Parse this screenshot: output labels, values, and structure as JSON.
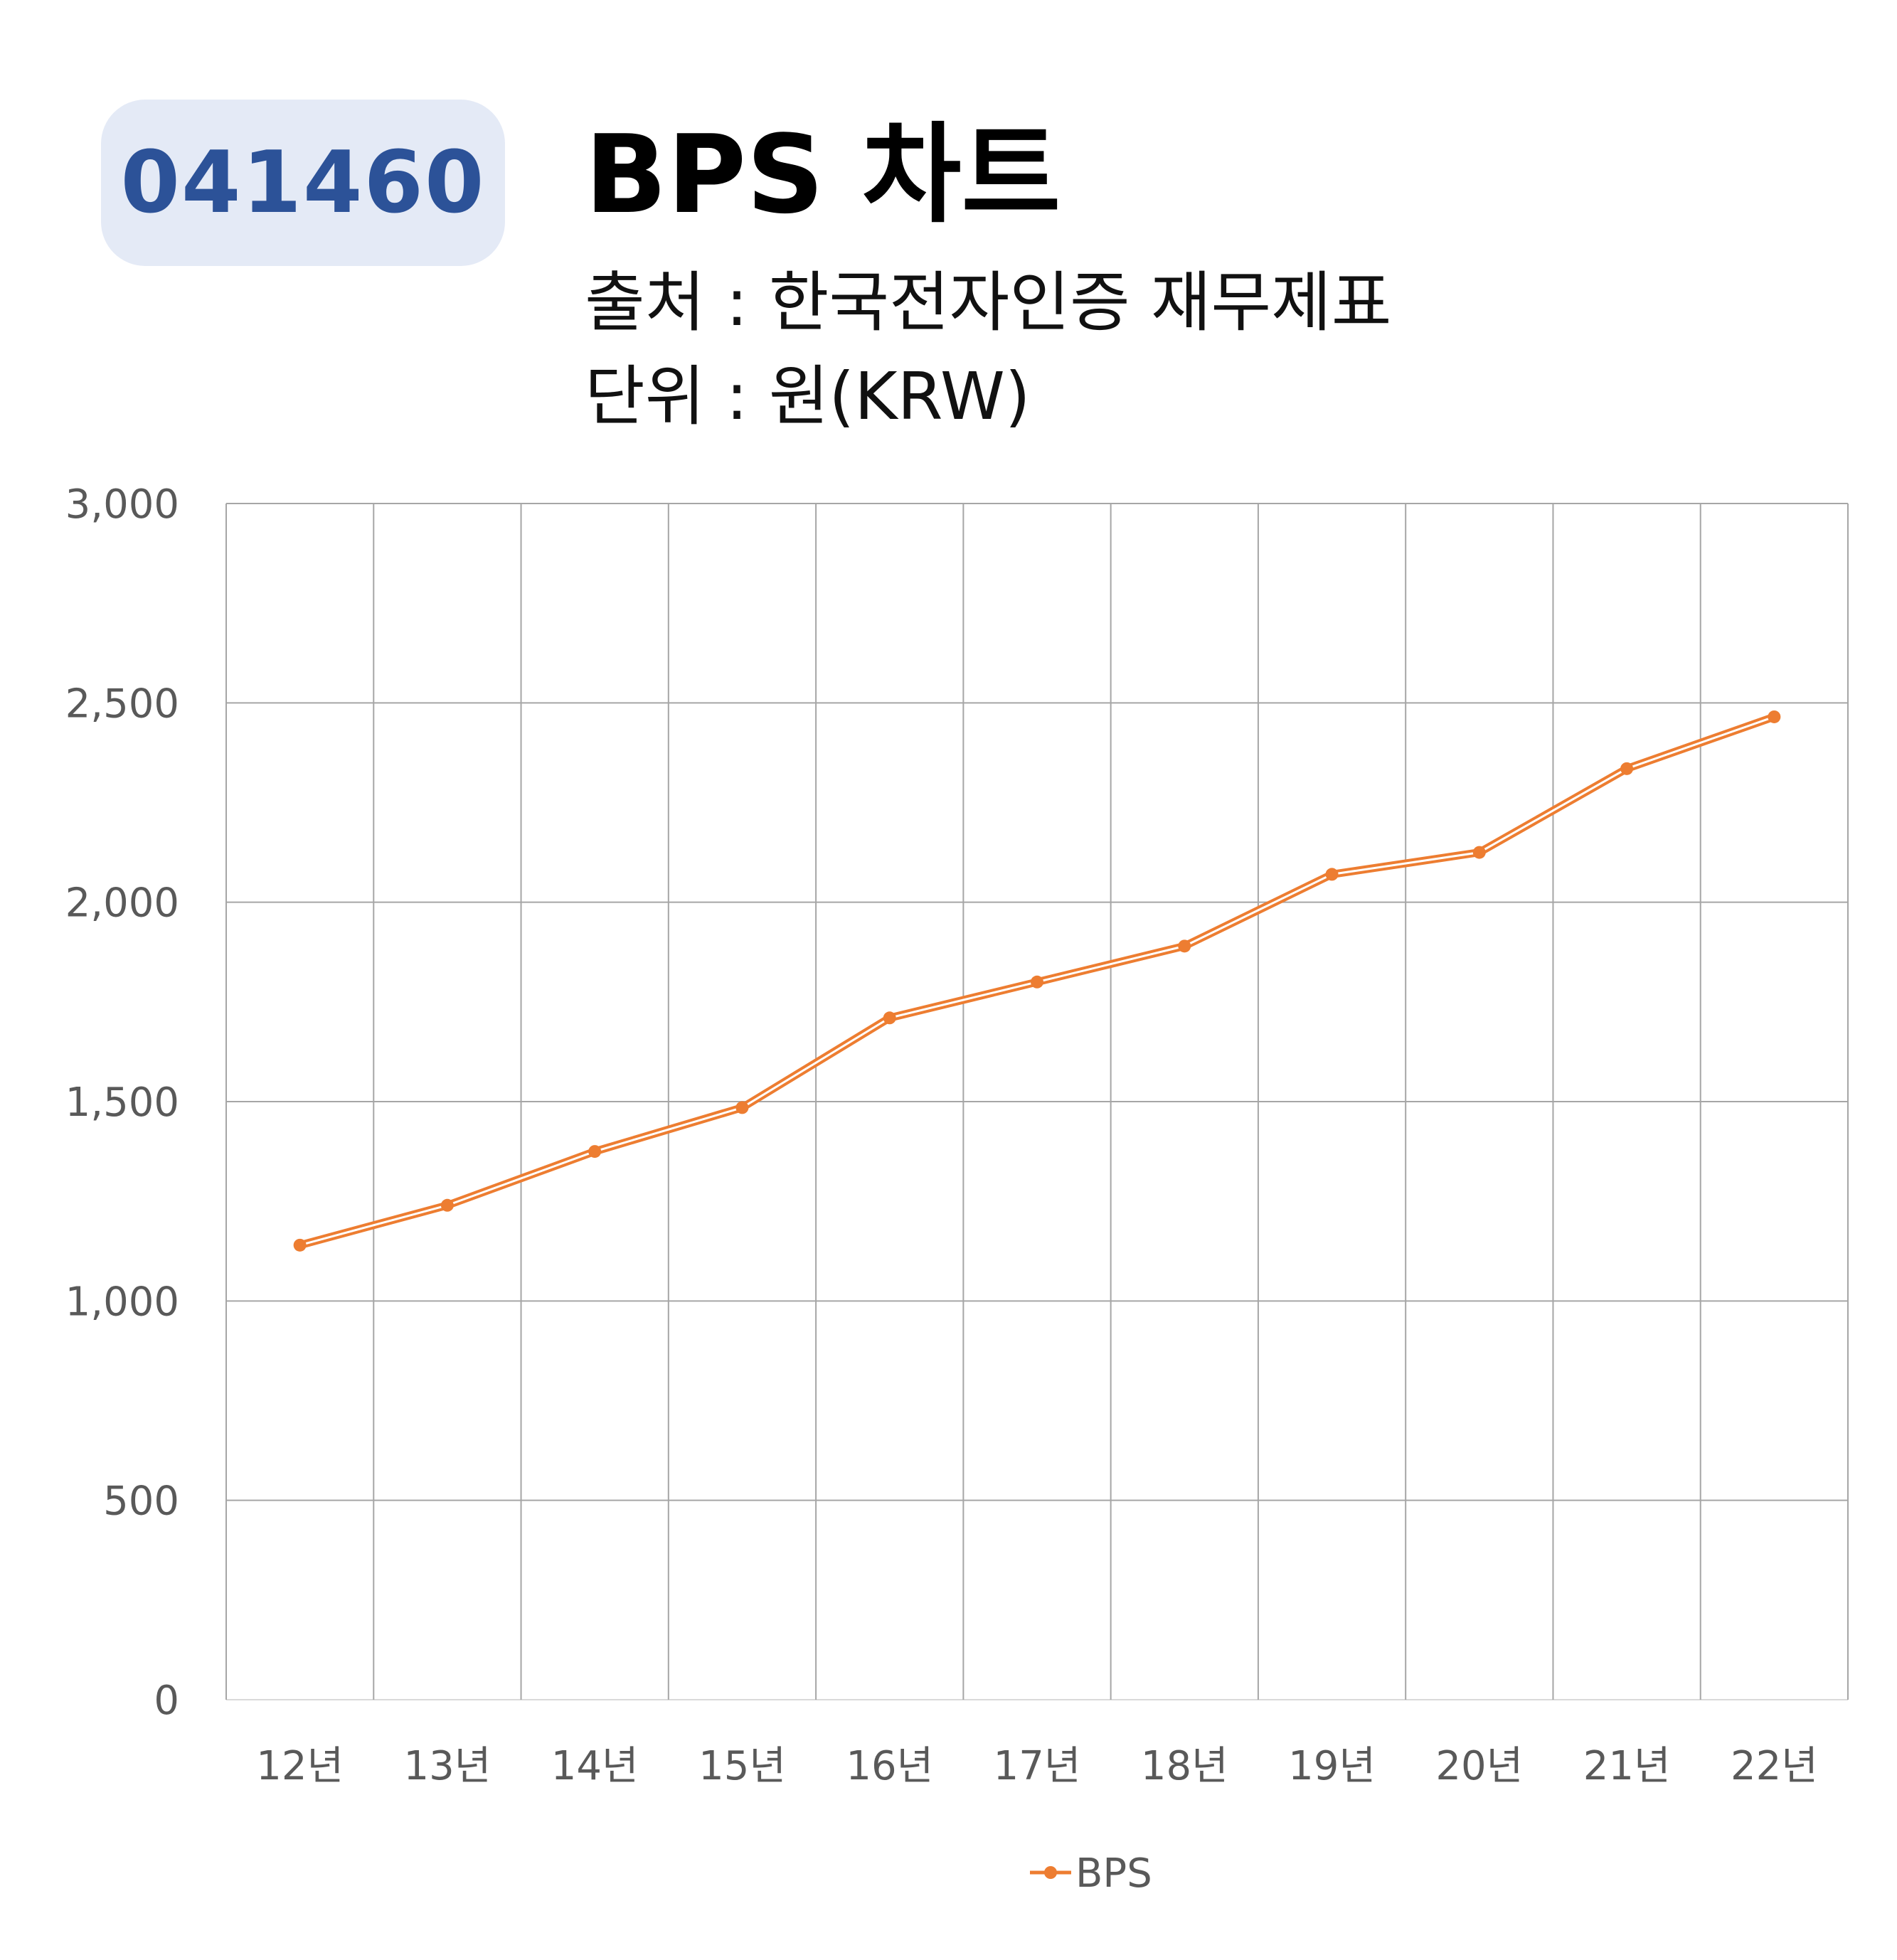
{
  "badge": {
    "ticker": "041460"
  },
  "header": {
    "title": "BPS 차트",
    "source": "출처 : 한국전자인증 재무제표",
    "unit": "단위 : 원(KRW)"
  },
  "colors": {
    "series": "#ed7d31",
    "badge_bg": "#e4eaf6",
    "badge_text": "#2c5298",
    "grid": "#a6a6a6"
  },
  "chart_data": {
    "type": "line",
    "categories": [
      "12년",
      "13년",
      "14년",
      "15년",
      "16년",
      "17년",
      "18년",
      "19년",
      "20년",
      "21년",
      "22년"
    ],
    "series": [
      {
        "name": "BPS",
        "values": [
          1140,
          1240,
          1375,
          1485,
          1710,
          1800,
          1890,
          2070,
          2125,
          2335,
          2465
        ]
      }
    ],
    "ylim": [
      0,
      3000
    ],
    "yticks": [
      0,
      500,
      1000,
      1500,
      2000,
      2500,
      3000
    ],
    "ytick_labels": [
      "0",
      "500",
      "1,000",
      "1,500",
      "2,000",
      "2,500",
      "3,000"
    ],
    "grid": true,
    "legend": "bottom"
  }
}
